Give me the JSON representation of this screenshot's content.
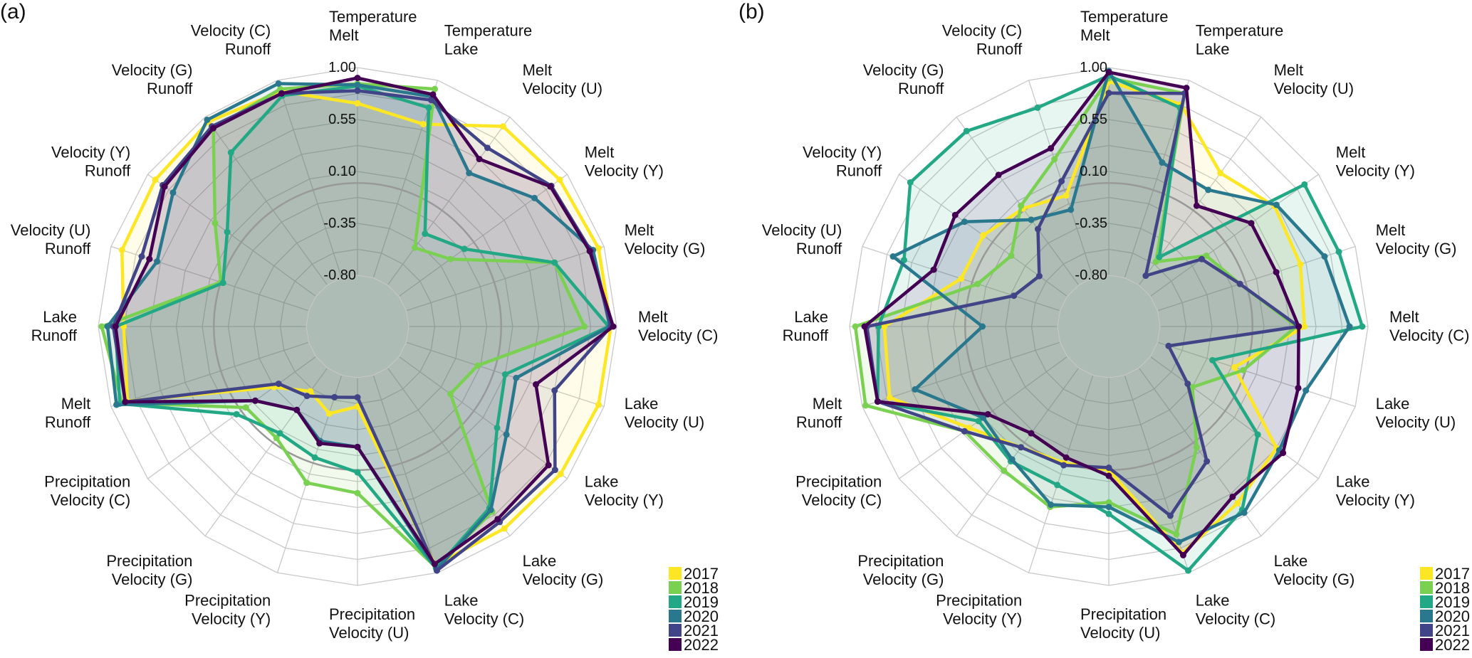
{
  "chart_data": [
    {
      "type": "radar",
      "panel_label": "(a)",
      "axes": [
        [
          "Temperature",
          "Melt"
        ],
        [
          "Temperature",
          "Lake"
        ],
        [
          "Melt",
          "Velocity (U)"
        ],
        [
          "Melt",
          "Velocity (Y)"
        ],
        [
          "Melt",
          "Velocity (G)"
        ],
        [
          "Melt",
          "Velocity (C)"
        ],
        [
          "Lake",
          "Velocity (U)"
        ],
        [
          "Lake",
          "Velocity (Y)"
        ],
        [
          "Lake",
          "Velocity (G)"
        ],
        [
          "Lake",
          "Velocity (C)"
        ],
        [
          "Precipitation",
          "Velocity (U)"
        ],
        [
          "Precipitation",
          "Velocity (Y)"
        ],
        [
          "Precipitation",
          "Velocity (G)"
        ],
        [
          "Precipitation",
          "Velocity (C)"
        ],
        [
          "Melt",
          "Runoff"
        ],
        [
          "Lake",
          "Runoff"
        ],
        [
          "Velocity (U)",
          "Runoff"
        ],
        [
          "Velocity (Y)",
          "Runoff"
        ],
        [
          "Velocity (G)",
          "Runoff"
        ],
        [
          "Velocity (C)",
          "Runoff"
        ]
      ],
      "radial_ticks": [
        "1.00",
        "0.55",
        "0.10",
        "-0.35",
        "-0.80"
      ],
      "tick_values": [
        1.0,
        0.55,
        0.1,
        -0.35,
        -0.8
      ],
      "reference_circle_value": 0,
      "rlim": [
        -1.24,
        1.0
      ],
      "legend_position": "bottom-right",
      "series": [
        {
          "name": "2017",
          "color": "#FDE725",
          "values": [
            0.69,
            0.6,
            0.9,
            0.92,
            0.95,
            0.95,
            0.95,
            0.93,
            0.92,
            0.93,
            -0.55,
            -0.45,
            -0.55,
            -0.35,
            0.85,
            0.78,
            0.9,
            0.92,
            0.95,
            0.9
          ]
        },
        {
          "name": "2018",
          "color": "#7AD151",
          "values": [
            0.86,
            0.92,
            -0.4,
            -0.25,
            0.55,
            0.72,
            -0.15,
            -0.25,
            0.74,
            0.95,
            0.2,
            0.18,
            -0.05,
            -0.05,
            0.9,
            0.97,
            0.0,
            0.28,
            0.88,
            0.92
          ]
        },
        {
          "name": "2019",
          "color": "#22A884",
          "values": [
            0.84,
            0.75,
            -0.25,
            -0.1,
            0.55,
            0.93,
            0.1,
            0.25,
            0.7,
            0.96,
            0.02,
            -0.05,
            -0.1,
            0.05,
            0.92,
            0.85,
            -0.02,
            0.15,
            0.62,
            0.86
          ]
        },
        {
          "name": "2020",
          "color": "#2A788E",
          "values": [
            0.85,
            0.85,
            0.4,
            0.65,
            0.9,
            0.94,
            0.2,
            0.35,
            0.72,
            0.97,
            -0.2,
            -0.2,
            -0.35,
            -0.15,
            0.95,
            0.92,
            0.58,
            0.73,
            0.97,
            0.97
          ]
        },
        {
          "name": "2021",
          "color": "#414487",
          "values": [
            0.8,
            0.82,
            0.67,
            0.83,
            0.88,
            0.95,
            0.55,
            0.87,
            0.85,
            0.98,
            -0.63,
            -0.6,
            -0.5,
            -0.4,
            0.87,
            0.87,
            0.72,
            0.84,
            0.9,
            0.88
          ]
        },
        {
          "name": "2022",
          "color": "#440154",
          "values": [
            0.91,
            0.87,
            0.55,
            0.82,
            0.87,
            0.97,
            0.38,
            0.8,
            0.82,
            0.92,
            -0.2,
            -0.18,
            -0.35,
            -0.15,
            0.87,
            0.85,
            0.65,
            0.82,
            0.88,
            0.88
          ]
        }
      ]
    },
    {
      "type": "radar",
      "panel_label": "(b)",
      "axes": [
        [
          "Temperature",
          "Melt"
        ],
        [
          "Temperature",
          "Lake"
        ],
        [
          "Melt",
          "Velocity (U)"
        ],
        [
          "Melt",
          "Velocity (Y)"
        ],
        [
          "Melt",
          "Velocity (G)"
        ],
        [
          "Melt",
          "Velocity (C)"
        ],
        [
          "Lake",
          "Velocity (U)"
        ],
        [
          "Lake",
          "Velocity (Y)"
        ],
        [
          "Lake",
          "Velocity (G)"
        ],
        [
          "Lake",
          "Velocity (C)"
        ],
        [
          "Precipitation",
          "Velocity (U)"
        ],
        [
          "Precipitation",
          "Velocity (Y)"
        ],
        [
          "Precipitation",
          "Velocity (G)"
        ],
        [
          "Precipitation",
          "Velocity (C)"
        ],
        [
          "Melt",
          "Runoff"
        ],
        [
          "Lake",
          "Runoff"
        ],
        [
          "Velocity (U)",
          "Runoff"
        ],
        [
          "Velocity (Y)",
          "Runoff"
        ],
        [
          "Velocity (G)",
          "Runoff"
        ],
        [
          "Velocity (C)",
          "Runoff"
        ]
      ],
      "radial_ticks": [
        "1.00",
        "0.55",
        "0.10",
        "-0.35",
        "-0.80"
      ],
      "tick_values": [
        1.0,
        0.55,
        0.1,
        -0.35,
        -0.8
      ],
      "reference_circle_value": 0,
      "rlim": [
        -1.24,
        1.0
      ],
      "legend_position": "bottom-right",
      "series": [
        {
          "name": "2017",
          "color": "#FDE725",
          "values": [
            0.88,
            0.78,
            0.4,
            0.53,
            0.5,
            0.45,
            -0.1,
            0.55,
            0.65,
            0.82,
            0.0,
            0.0,
            0.05,
            0.25,
            0.75,
            0.7,
            0.1,
            0.1,
            0.02,
            -0.05
          ]
        },
        {
          "name": "2018",
          "color": "#7AD151",
          "values": [
            0.91,
            0.88,
            -0.55,
            -0.2,
            -0.05,
            0.38,
            -0.02,
            -0.35,
            0.05,
            0.65,
            0.28,
            0.4,
            0.3,
            0.3,
            0.97,
            0.95,
            -0.05,
            -0.2,
            0.05,
            0.28
          ]
        },
        {
          "name": "2019",
          "color": "#22A884",
          "values": [
            0.93,
            0.75,
            -0.5,
            0.85,
            0.85,
            0.95,
            -0.3,
            0.35,
            0.72,
            0.98,
            0.38,
            0.2,
            0.2,
            0.15,
            0.86,
            0.75,
            0.62,
            0.88,
            0.85,
            0.75
          ]
        },
        {
          "name": "2020",
          "color": "#2A788E",
          "values": [
            0.97,
            0.25,
            0.22,
            0.55,
            0.72,
            0.84,
            0.55,
            0.58,
            0.75,
            0.72,
            0.32,
            0.38,
            0.18,
            0.1,
            0.52,
            -0.15,
            0.72,
            0.3,
            -0.1,
            -0.18
          ]
        },
        {
          "name": "2021",
          "color": "#414487",
          "values": [
            0.78,
            0.88,
            -0.7,
            -0.25,
            -0.05,
            0.4,
            -0.7,
            -0.4,
            0.2,
            0.48,
            -0.02,
            0.02,
            0.05,
            0.3,
            0.86,
            0.85,
            -0.38,
            -0.5,
            -0.2,
            0.08
          ]
        },
        {
          "name": "2022",
          "color": "#440154",
          "values": [
            0.96,
            0.93,
            0.05,
            0.28,
            0.28,
            0.4,
            0.48,
            0.62,
            0.58,
            0.84,
            0.05,
            -0.05,
            -0.1,
            0.05,
            0.86,
            0.87,
            0.35,
            0.4,
            0.38,
            0.38
          ]
        }
      ]
    }
  ]
}
